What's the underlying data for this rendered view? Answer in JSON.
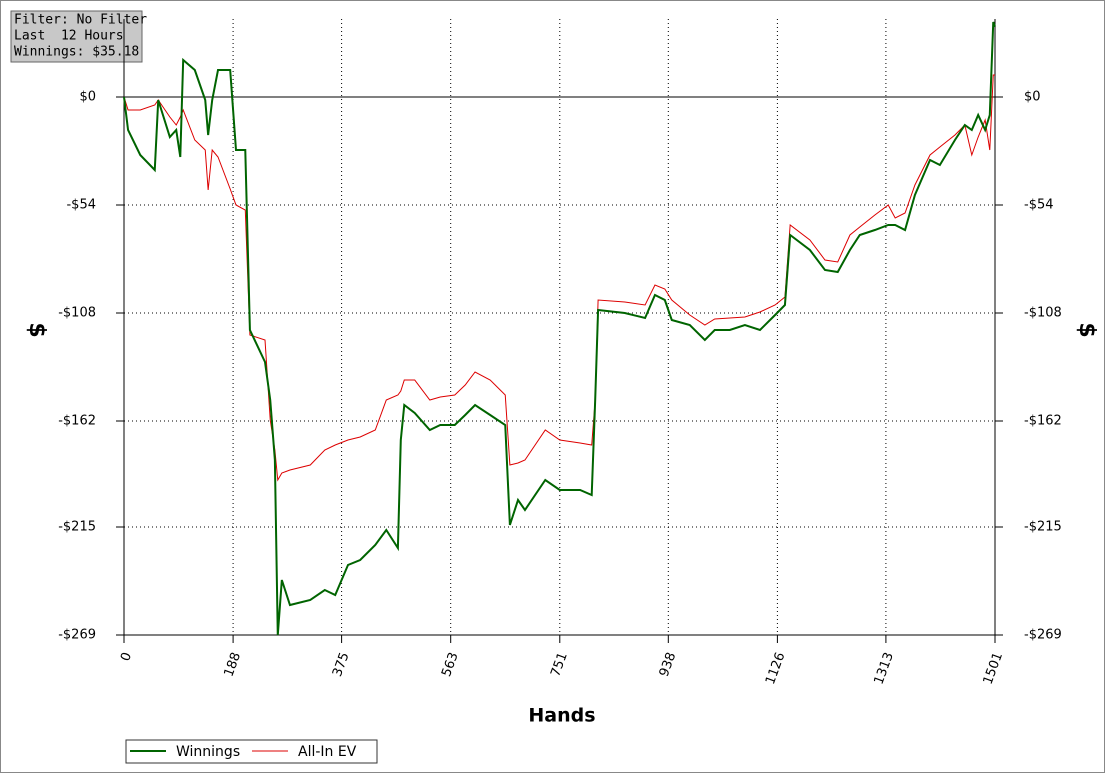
{
  "chart_data": {
    "type": "line",
    "info": [
      "Filter: No Filter",
      "Last  12 Hours",
      "Winnings: $35.18"
    ],
    "x_label": "Hands",
    "y_label": "$",
    "x": [
      0,
      7,
      28,
      53,
      59,
      79,
      90,
      97,
      102,
      122,
      140,
      145,
      152,
      162,
      183,
      193,
      209,
      217,
      243,
      252,
      260,
      265,
      272,
      286,
      321,
      346,
      364,
      386,
      407,
      433,
      452,
      472,
      477,
      483,
      501,
      527,
      545,
      570,
      588,
      605,
      631,
      657,
      665,
      679,
      691,
      726,
      751,
      786,
      806,
      812,
      817,
      863,
      898,
      915,
      932,
      944,
      975,
      1001,
      1018,
      1044,
      1070,
      1096,
      1122,
      1139,
      1148,
      1182,
      1208,
      1230,
      1251,
      1268,
      1294,
      1317,
      1329,
      1346,
      1363,
      1389,
      1406,
      1432,
      1449,
      1461,
      1472,
      1484,
      1492,
      1498,
      1501
    ],
    "series": [
      {
        "name": "Winnings",
        "color": "#006400",
        "values": [
          0,
          -16.5,
          -29,
          -36.5,
          -1.5,
          -20,
          -16.5,
          -30,
          18.5,
          13.5,
          -1.5,
          -19,
          -1.5,
          13.5,
          13.5,
          -26.5,
          -26.5,
          -116.5,
          -132.5,
          -151.5,
          -181.5,
          -269,
          -241.5,
          -254,
          -251.5,
          -246.5,
          -249,
          -234,
          -231.5,
          -224,
          -216.5,
          -225.5,
          -171.5,
          -154,
          -158,
          -166.5,
          -164,
          -164,
          -159,
          -154,
          -159,
          -164,
          -214,
          -201.5,
          -206.5,
          -191.5,
          -196.5,
          -196.5,
          -199,
          -151.5,
          -106.5,
          -108,
          -110.5,
          -99,
          -101.5,
          -111.5,
          -114,
          -121.5,
          -116.5,
          -116.5,
          -114,
          -116.5,
          -109,
          -104,
          -69,
          -76.5,
          -86.5,
          -87.5,
          -76.5,
          -69,
          -66.5,
          -64,
          -64,
          -66.5,
          -49,
          -31.5,
          -34,
          -21.5,
          -14,
          -16.5,
          -9,
          -16.5,
          -9,
          37.5,
          35.18
        ]
      },
      {
        "name": "All-In EV",
        "color": "#dd0000",
        "values": [
          0,
          -6.5,
          -6.5,
          -4,
          -1.5,
          -10,
          -14,
          -10,
          -6.5,
          -21.5,
          -26.5,
          -46.5,
          -26.5,
          -30,
          -46,
          -54,
          -56.5,
          -119,
          -121.5,
          -161.5,
          -176.5,
          -191.5,
          -188,
          -186.5,
          -184,
          -176.5,
          -174,
          -171.5,
          -170,
          -166.5,
          -151.5,
          -149,
          -147,
          -141.5,
          -141.5,
          -151.5,
          -150,
          -149,
          -144,
          -137.5,
          -141.5,
          -149,
          -184,
          -183,
          -181.5,
          -166.5,
          -171.5,
          -173,
          -174,
          -151.5,
          -101.5,
          -102.5,
          -104,
          -94,
          -96,
          -101.5,
          -109,
          -114,
          -111,
          -110.5,
          -110,
          -107.5,
          -104,
          -100,
          -64,
          -71.5,
          -81.5,
          -82.5,
          -69,
          -65,
          -59,
          -54,
          -60.5,
          -58,
          -44,
          -29,
          -25,
          -19,
          -14,
          -29,
          -20,
          -11.5,
          -26.5,
          11,
          11
        ]
      }
    ],
    "xlim": [
      0,
      1501
    ],
    "xticks": [
      0,
      188,
      375,
      563,
      751,
      938,
      1126,
      1313,
      1501
    ],
    "ylim": [
      -269,
      39
    ],
    "yticks": [
      {
        "value": 0,
        "label": "$0"
      },
      {
        "value": -54,
        "label": "-$54"
      },
      {
        "value": -108,
        "label": "-$108"
      },
      {
        "value": -162,
        "label": "-$162"
      },
      {
        "value": -215,
        "label": "-$215"
      },
      {
        "value": -269,
        "label": "-$269"
      }
    ],
    "grid": true
  }
}
